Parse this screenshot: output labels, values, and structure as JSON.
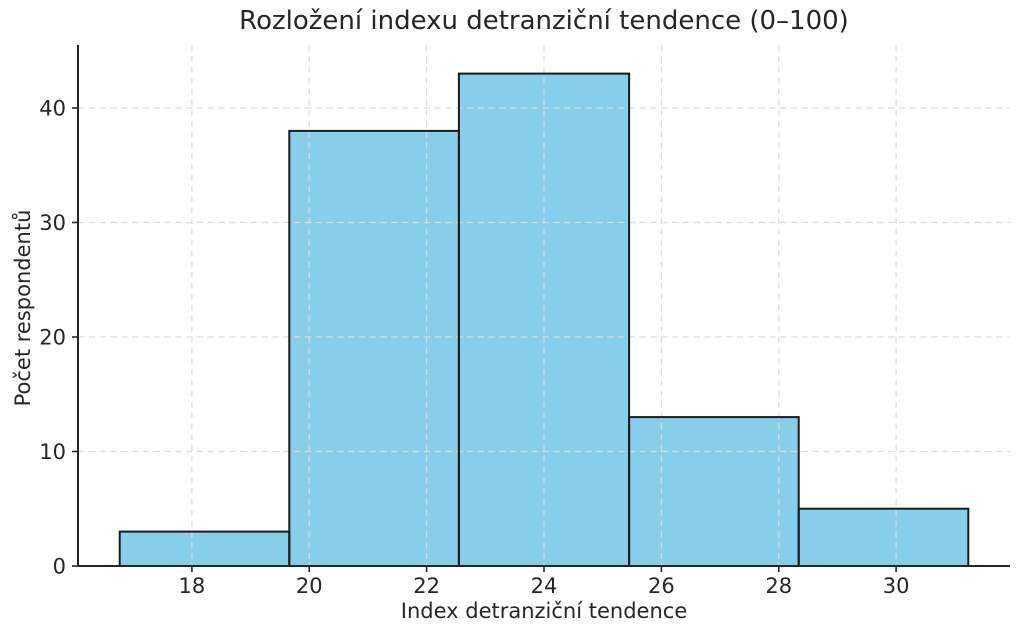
{
  "chart_data": {
    "type": "bar",
    "subtype": "histogram",
    "title": "Rozložení indexu detranziční tendence (0–100)",
    "xlabel": "Index detranziční tendence",
    "ylabel": "Počet respondentů",
    "bin_edges": [
      16.77,
      19.66,
      22.55,
      25.45,
      28.34,
      31.23
    ],
    "counts": [
      3,
      38,
      43,
      13,
      5
    ],
    "xticks": [
      18,
      20,
      22,
      24,
      26,
      28,
      30
    ],
    "yticks": [
      0,
      10,
      20,
      30,
      40
    ],
    "xlim": [
      16.06,
      31.94
    ],
    "ylim": [
      0,
      45.5
    ],
    "grid": {
      "visible": true,
      "style": "dashed",
      "color": "#dcdcdc",
      "above_bars": true
    },
    "legend": null,
    "colors": {
      "bar_fill": "#87CEEB",
      "bar_edge": "#1a1a1a",
      "spine": "#262626",
      "tick": "#262626",
      "text": "#262626",
      "background": "#ffffff"
    }
  }
}
